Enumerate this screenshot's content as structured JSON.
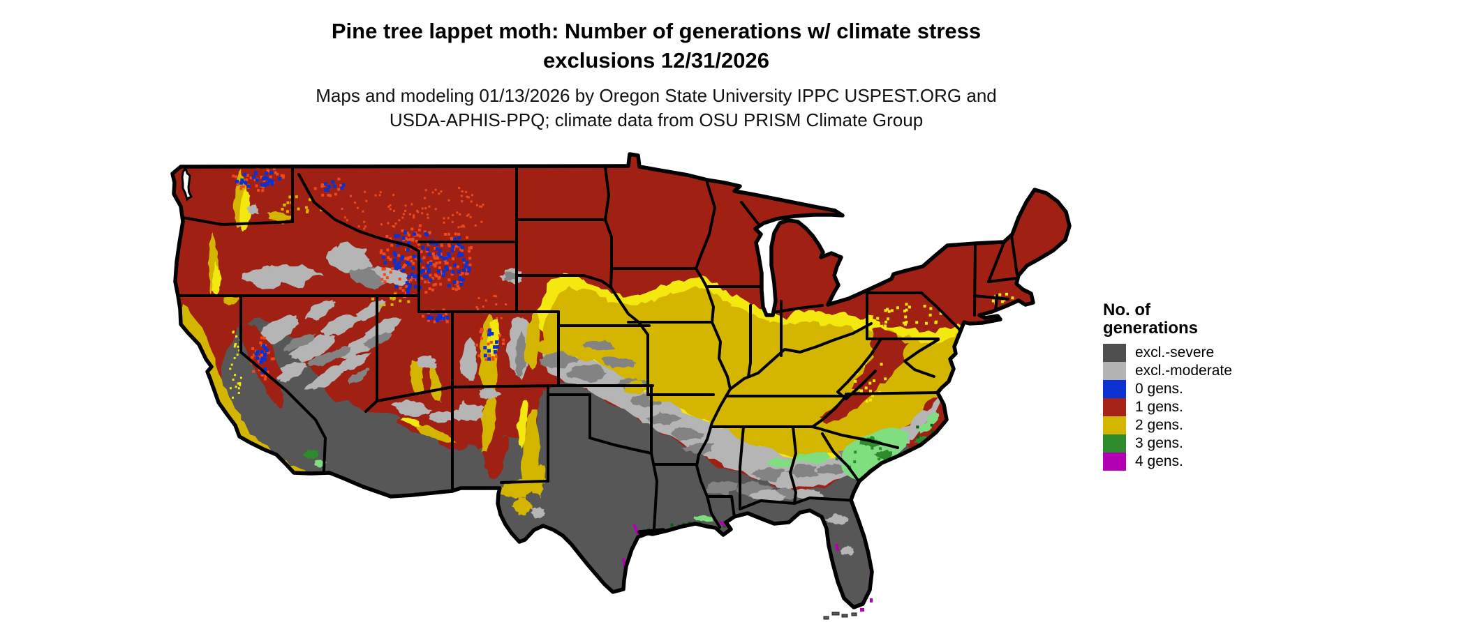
{
  "title": {
    "line1": "Pine tree lappet moth: Number of generations w/ climate stress",
    "line2": "exclusions 12/31/2026"
  },
  "subtitle": {
    "line1": "Maps and modeling 01/13/2026 by Oregon State University IPPC USPEST.ORG and",
    "line2": "USDA-APHIS-PPQ; climate data from OSU PRISM Climate Group"
  },
  "legend": {
    "title_line1": "No. of",
    "title_line2": "generations",
    "items": [
      {
        "label": "excl.-severe",
        "color": "#4F4F4F"
      },
      {
        "label": "excl.-moderate",
        "color": "#B3B3B3"
      },
      {
        "label": "0 gens.",
        "color": "#0C31D2"
      },
      {
        "label": "1 gens.",
        "color": "#A52417"
      },
      {
        "label": "2 gens.",
        "color": "#D4B600"
      },
      {
        "label": "3 gens.",
        "color": "#2E8B2D"
      },
      {
        "label": "4 gens.",
        "color": "#B400B4"
      }
    ]
  },
  "map": {
    "region": "Contiguous United States",
    "palette": {
      "map_red": "#A02014",
      "map_red_bright": "#EE4A1C",
      "map_gold": "#D4B600",
      "map_yellow_bright": "#F4E90E",
      "map_gray_dark": "#575757",
      "map_gray_medium": "#838383",
      "map_gray_light": "#B5B5B5",
      "map_blue": "#0C31D2",
      "map_green": "#2E8B2D",
      "map_green_light": "#7FDE7F",
      "map_green_dark": "#0B5B10",
      "map_magenta": "#B400B4",
      "water": "#FFFFFF",
      "border": "#000000"
    }
  }
}
